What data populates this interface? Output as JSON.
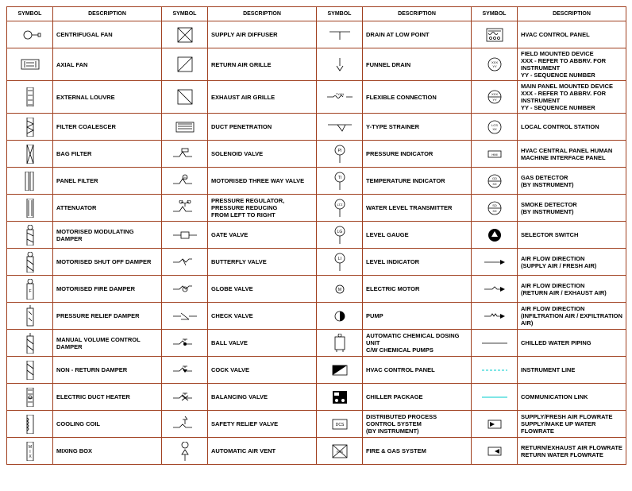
{
  "border_color": "#a04020",
  "header_fontsize": 7,
  "cell_fontsize": 7.5,
  "headers": [
    "SYMBOL",
    "DESCRIPTION",
    "SYMBOL",
    "DESCRIPTION",
    "SYMBOL",
    "DESCRIPTION",
    "SYMBOL",
    "DESCRIPTION"
  ],
  "rows": [
    {
      "c1d": "CENTRIFUGAL FAN",
      "c2d": "SUPPLY AIR DIFFUSER",
      "c3d": "DRAIN AT LOW POINT",
      "c4d": "HVAC CONTROL PANEL"
    },
    {
      "c1d": "AXIAL FAN",
      "c2d": "RETURN AIR GRILLE",
      "c3d": "FUNNEL DRAIN",
      "c4d": "FIELD MOUNTED DEVICE\nXXX - REFER TO ABBRV. FOR INSTRUMENT\nYY - SEQUENCE NUMBER"
    },
    {
      "c1d": "EXTERNAL LOUVRE",
      "c2d": "EXHAUST AIR GRILLE",
      "c3d": "FLEXIBLE CONNECTION",
      "c4d": "MAIN PANEL MOUNTED DEVICE\nXXX - REFER TO ABBRV. FOR INSTRUMENT\nYY - SEQUENCE NUMBER"
    },
    {
      "c1d": "FILTER COALESCER",
      "c2d": "DUCT PENETRATION",
      "c3d": "Y-TYPE STRAINER",
      "c4d": "LOCAL CONTROL STATION"
    },
    {
      "c1d": "BAG FILTER",
      "c2d": "SOLENOID VALVE",
      "c3d": "PRESSURE INDICATOR",
      "c4d": "HVAC CENTRAL PANEL HUMAN\nMACHINE INTERFACE PANEL"
    },
    {
      "c1d": "PANEL FILTER",
      "c2d": "MOTORISED THREE WAY VALVE",
      "c3d": "TEMPERATURE INDICATOR",
      "c4d": "GAS DETECTOR\n(BY INSTRUMENT)"
    },
    {
      "c1d": "ATTENUATOR",
      "c2d": "PRESSURE REGULATOR, PRESSURE REDUCING\nFROM LEFT TO RIGHT",
      "c3d": "WATER LEVEL TRANSMITTER",
      "c4d": "SMOKE DETECTOR\n(BY INSTRUMENT)"
    },
    {
      "c1d": "MOTORISED MODULATING DAMPER",
      "c2d": "GATE VALVE",
      "c3d": "LEVEL GAUGE",
      "c4d": "SELECTOR SWITCH"
    },
    {
      "c1d": "MOTORISED SHUT OFF DAMPER",
      "c2d": "BUTTERFLY VALVE",
      "c3d": "LEVEL INDICATOR",
      "c4d": "AIR FLOW DIRECTION\n(SUPPLY AIR / FRESH AIR)"
    },
    {
      "c1d": "MOTORISED FIRE DAMPER",
      "c2d": "GLOBE VALVE",
      "c3d": "ELECTRIC MOTOR",
      "c4d": "AIR FLOW DIRECTION\n(RETURN AIR / EXHAUST AIR)"
    },
    {
      "c1d": "PRESSURE RELIEF DAMPER",
      "c2d": "CHECK VALVE",
      "c3d": "PUMP",
      "c4d": "AIR FLOW DIRECTION\n(INFILTRATION AIR / EXFILTRATION AIR)"
    },
    {
      "c1d": "MANUAL VOLUME CONTROL DAMPER",
      "c2d": "BALL VALVE",
      "c3d": "AUTOMATIC CHEMICAL DOSING UNIT\nC/W CHEMICAL PUMPS",
      "c4d": "CHILLED WATER PIPING"
    },
    {
      "c1d": "NON - RETURN DAMPER",
      "c2d": "COCK VALVE",
      "c3d": "HVAC CONTROL PANEL",
      "c4d": "INSTRUMENT LINE"
    },
    {
      "c1d": "ELECTRIC DUCT HEATER",
      "c2d": "BALANCING VALVE",
      "c3d": "CHILLER PACKAGE",
      "c4d": "COMMUNICATION LINK"
    },
    {
      "c1d": "COOLING COIL",
      "c2d": "SAFETY RELIEF VALVE",
      "c3d": "DISTRIBUTED PROCESS CONTROL SYSTEM\n(BY INSTRUMENT)",
      "c4d": "SUPPLY/FRESH AIR FLOWRATE\nSUPPLY/MAKE UP WATER FLOWRATE"
    },
    {
      "c1d": "MIXING BOX",
      "c2d": "AUTOMATIC AIR VENT",
      "c3d": "FIRE & GAS SYSTEM",
      "c4d": "RETURN/EXHAUST AIR FLOWRATE\nRETURN WATER FLOWRATE"
    }
  ],
  "icons": {
    "c1": [
      "<svg width='30' height='20'><circle class='thin' cx='12' cy='10' r='5'/><path class='thin' d='M17 10h8'/><rect class='thin' x='25' y='8' width='3' height='4'/></svg>",
      "<svg width='30' height='16'><rect class='thin' x='4' y='2' width='22' height='12'/><path class='thin' d='M8 4v8M22 4v8M10 6h10M10 10h10'/></svg>",
      "<svg width='12' height='24'><rect class='thin' x='2' y='0' width='8' height='24'/><path class='thin' d='M3 4h6M3 10h6M3 16h6M3 22h6'/></svg>",
      "<svg width='12' height='24'><rect class='thin' x='2' y='0' width='8' height='24'/><path class='thin' d='M2 4l8 4l-8 4l8 4l-8 4'/></svg>",
      "<svg width='12' height='24'><rect class='thin' x='2' y='0' width='8' height='24'/><path class='thin' d='M2 0l8 24M10 0l-8 24'/></svg>",
      "<svg width='16' height='24'><rect class='thin' x='2' y='0' width='4' height='24'/><rect class='thin' x='8' y='0' width='4' height='24'/></svg>",
      "<svg width='12' height='24'><rect class='thin' x='2' y='0' width='8' height='24'/><path class='thin' d='M4 2v20M8 2v20'/></svg>",
      "<svg width='14' height='26'><rect class='thin' x='3' y='6' width='8' height='20'/><circle class='thin' cx='7' cy='3' r='3'/><path class='thin' d='M3 10l8 4M3 18l8 4'/></svg>",
      "<svg width='14' height='26'><rect class='thin' x='3' y='6' width='8' height='20'/><circle class='thin' cx='7' cy='3' r='3'/><path class='thin' d='M3 10l8 6M3 18l8 6'/></svg>",
      "<svg width='14' height='26'><rect class='thin' x='3' y='6' width='8' height='20'/><circle class='thin' cx='7' cy='3' r='3'/><text x='7' y='17' font-size='5' text-anchor='middle'>F</text></svg>",
      "<svg width='14' height='28'><rect class='thin' x='3' y='4' width='8' height='22'/><path class='thin' d='M7 0v4M5 8l4 4M5 16l4 4'/></svg>",
      "<svg width='14' height='26'><rect class='thin' x='3' y='4' width='8' height='22'/><path class='thin' d='M7 0v4M3 8l8 6M3 16l8 6'/></svg>",
      "<svg width='14' height='24'><rect class='thin' x='3' y='0' width='8' height='24'/><path class='thin' d='M3 4l8 6M3 12l8 6'/></svg>",
      "<svg width='14' height='24'><rect class='thin' x='3' y='0' width='8' height='24'/><path class='thin' d='M4 3h6M4 8h6M4 13h6M4 18h6'/><circle class='thin' cx='7' cy='12' r='2'/></svg>",
      "<svg width='14' height='24'><rect class='thin' x='3' y='0' width='8' height='24'/><path class='thin' d='M3 4q4 2 0 4q4 2 0 4q4 2 0 4q4 2 0 4'/></svg>",
      "<svg width='14' height='24'><rect class='thin' x='3' y='0' width='8' height='24'/><text x='7' y='8' font-size='5' text-anchor='middle'>M</text><text x='7' y='14' font-size='5' text-anchor='middle'>I</text><text x='7' y='20' font-size='5' text-anchor='middle'>X</text></svg>"
    ],
    "c2": [
      "<svg width='22' height='22'><rect class='thin' x='2' y='2' width='18' height='18'/><path class='thin' d='M2 2l18 18M20 2l-18 18'/></svg>",
      "<svg width='22' height='22'><rect class='thin' x='2' y='2' width='18' height='18'/><path class='thin' d='M2 20l18-18'/></svg>",
      "<svg width='22' height='22'><rect class='thin' x='2' y='2' width='18' height='18'/><path class='thin' d='M2 2l18 18'/></svg>",
      "<svg width='30' height='16'><rect class='thin' x='4' y='2' width='22' height='12' fill='#888' fill-opacity='0.3'/><path class='thin' d='M6 4h18M6 7h18M6 10h18'/></svg>",
      "<svg width='34' height='18'><path class='thin' d='M2 12h8l4-6 4 6h8'/><rect class='thin' x='13' y='2' width='8' height='4'/></svg>",
      "<svg width='34' height='18'><path class='thin' d='M2 12h8l4-6 4 6h8'/><circle class='thin' cx='17' cy='4' r='3'/><text x='17' y='6' font-size='4' text-anchor='middle'>M</text></svg>",
      "<svg width='34' height='20'><path class='thin' d='M2 14h8l4-6 4 6h8M17 8v-4'/><circle class='thin' cx='12' cy='2' r='2'/><circle class='thin' cx='22' cy='2' r='2'/><path class='thin' d='M17 4l-5-2M17 4l5-2'/></svg>",
      "<svg width='34' height='12'><path class='thin' d='M2 6h10M22 6h10'/><rect class='thin' x='12' y='2' width='10' height='8'/></svg>",
      "<svg width='34' height='12'><path class='thin' d='M2 6h8l4-4 4 4 4-4h4'/><path class='thin' d='M14 2l4 8'/></svg>",
      "<svg width='34' height='12'><path class='thin' d='M2 6h8l4-4 4 4 4-4h4'/><circle class='thin' cx='17' cy='6' r='3'/></svg>",
      "<svg width='34' height='12'><path class='thin' d='M2 6h10M22 6h10'/><path class='thin' d='M12 2l10 8M12 10h10'/></svg>",
      "<svg width='34' height='14'><path class='thin' d='M2 8h8l4-4 4 4h8'/><circle class='fill' cx='17' cy='8' r='2'/><path class='thin' d='M17 4v-2M14 2h6'/></svg>",
      "<svg width='34' height='14'><path class='thin' d='M2 8h8l4-4 4 4h8M17 4v-2M14 2h6'/><path class='fill' d='M14 6l6 0l-3 4z'/></svg>",
      "<svg width='34' height='14'><path class='thin' d='M2 8h8l4-4 4 4h8M17 4v-2M14 2h6'/><path class='thin' d='M13 5l8 6M13 11l8-6'/></svg>",
      "<svg width='34' height='20'><path class='thin' d='M2 14h8l4-4 4 4h8M17 10v-6'/><path class='thin' d='M14 4l6 0M17 0l3 4'/></svg>",
      "<svg width='20' height='24'><path class='thin' d='M10 24v-8'/><path class='thin' d='M6 16l4-6 4 6z'/><circle class='thin' cx='10' cy='4' r='4'/></svg>"
    ],
    "c3": [
      "<svg width='30' height='16'><path class='thin' d='M2 4h26M15 4v10'/></svg>",
      "<svg width='20' height='20'><path class='thin' d='M10 2v10M6 12l4 6 4-6'/></svg>",
      "<svg width='36' height='10'><path class='thin' d='M2 5h8M26 5h8'/><path class='thin' d='M10 5q2-3 4 0t4 0t4 0'/><text x='18' y='3' font-size='4' text-anchor='middle'>TYAN</text></svg>",
      "<svg width='34' height='14'><path class='thin' d='M2 4h30M14 4l6 8 4-8'/></svg>",
      "<svg width='18' height='24'><circle class='thin' cx='9' cy='7' r='6'/><text x='9' y='9' font-size='5' text-anchor='middle'>PI</text><path class='thin' d='M9 13v10'/></svg>",
      "<svg width='18' height='24'><circle class='thin' cx='9' cy='7' r='6'/><text x='9' y='9' font-size='5' text-anchor='middle'>TI</text><path class='thin' d='M9 13v10'/></svg>",
      "<svg width='18' height='24'><circle class='thin' cx='9' cy='7' r='6'/><text x='9' y='9' font-size='4' text-anchor='middle'>LTZ</text><path class='thin' d='M9 13v10'/></svg>",
      "<svg width='18' height='24'><circle class='thin' cx='9' cy='7' r='6'/><text x='9' y='9' font-size='5' text-anchor='middle'>LG</text><path class='thin' d='M9 13v10'/></svg>",
      "<svg width='18' height='24'><circle class='thin' cx='9' cy='7' r='6'/><text x='9' y='9' font-size='5' text-anchor='middle'>LI</text><path class='thin' d='M9 13v10'/></svg>",
      "<svg width='14' height='14'><circle class='thin' cx='7' cy='7' r='5'/><text x='7' y='9' font-size='5' text-anchor='middle'>M</text></svg>",
      "<svg width='16' height='16'><circle class='thin' cx='8' cy='8' r='6'/><path class='fill' d='M8 2a6 6 0 0 1 0 12z'/></svg>",
      "<svg width='20' height='24'><rect class='thin' x='4' y='4' width='12' height='16'/><circle class='thin' cx='10' cy='2' r='2'/><path class='thin' d='M6 20v3M14 20v3'/></svg>",
      "<svg width='22' height='16'><rect class='thin' x='2' y='2' width='18' height='12'/><path class='fill' d='M2 2h18l-18 12z'/><text x='11' y='13' font-size='4' text-anchor='middle' fill='#fff'>HCP</text></svg>",
      "<svg width='22' height='20'><rect class='fill' x='2' y='2' width='18' height='16'/><rect x='4' y='4' width='6' height='4' fill='#fff'/><circle cx='7' cy='14' r='2' fill='#fff'/><circle cx='15' cy='14' r='2' fill='#fff'/></svg>",
      "<svg width='22' height='16'><rect class='thin' x='2' y='2' width='18' height='12'/><text x='11' y='10' font-size='5' text-anchor='middle'>DCS</text></svg>",
      "<svg width='22' height='20'><rect class='thin' x='2' y='2' width='18' height='16'/><path class='thin' d='M2 2l18 16M20 2l-18 16'/><text x='11' y='12' font-size='4' text-anchor='middle'>FGS</text></svg>"
    ],
    "c4": [
      "<svg width='24' height='20'><rect class='thin' x='2' y='2' width='20' height='16'/><path class='thin' d='M4 5h16M4 8q2 3 4 0t4 0t4 0'/><circle class='thin' cx='7' cy='14' r='1.5'/><circle class='thin' cx='12' cy='14' r='1.5'/><circle class='thin' cx='17' cy='14' r='1.5'/></svg>",
      "<svg width='20' height='20'><circle class='thin' cx='10' cy='10' r='8'/><text x='10' y='9' font-size='4' text-anchor='middle'>XXX</text><text x='10' y='14' font-size='4' text-anchor='middle'>YY</text></svg>",
      "<svg width='20' height='20'><circle class='thin' cx='10' cy='10' r='8'/><path class='thin' d='M2 10h16'/><text x='10' y='8' font-size='4' text-anchor='middle'>XXX</text><text x='10' y='15' font-size='4' text-anchor='middle'>YY</text></svg>",
      "<svg width='20' height='20'><circle class='thin' cx='10' cy='10' r='8'/><text x='10' y='9' font-size='4' text-anchor='middle'>LCS</text><text x='10' y='14' font-size='4' text-anchor='middle'>XX</text></svg>",
      "<svg width='20' height='12'><rect class='thin' x='2' y='2' width='16' height='8'/><text x='10' y='8' font-size='4' text-anchor='middle'>HMI</text></svg>",
      "<svg width='20' height='20'><circle class='thin' cx='10' cy='10' r='8'/><path class='thin' d='M2 10h16'/><text x='10' y='8' font-size='4' text-anchor='middle'>GD</text><text x='10' y='15' font-size='4' text-anchor='middle'>XX</text></svg>",
      "<svg width='20' height='20'><circle class='thin' cx='10' cy='10' r='8'/><path class='thin' d='M2 10h16'/><text x='10' y='8' font-size='4' text-anchor='middle'>SD</text><text x='10' y='15' font-size='4' text-anchor='middle'>XX</text></svg>",
      "<svg width='18' height='18'><circle class='fill' cx='9' cy='9' r='8'/><path d='M9 4l4 7h-8z' fill='#fff'/></svg>",
      "<svg width='30' height='10'><path class='thin' d='M2 5h20'/><path class='fill' d='M22 2l6 3-6 3z'/></svg>",
      "<svg width='30' height='10'><path class='thin' d='M2 5h10l3-3 3 3h4'/><path class='fill' d='M22 2l6 3-6 3z'/></svg>",
      "<svg width='30' height='10'><path class='thin' d='M2 5h8l2-3 2 3 2-3 2 3h4'/><path class='fill' d='M22 2l6 3-6 3z'/></svg>",
      "<svg width='36' height='6'><path class='thin' d='M2 3h32'/></svg>",
      "<svg width='36' height='6'><path d='M2 3h32' class='inst-line'/></svg>",
      "<svg width='36' height='6'><path d='M2 3h32' class='comm-line'/></svg>",
      "<svg width='20' height='14'><rect class='thin' x='2' y='2' width='16' height='10'/><path class='fill' d='M4 4l6 3-6 3z'/></svg>",
      "<svg width='20' height='14'><rect class='thin' x='2' y='2' width='16' height='10'/><path class='fill' d='M16 4l-6 3 6 3z'/></svg>"
    ]
  }
}
